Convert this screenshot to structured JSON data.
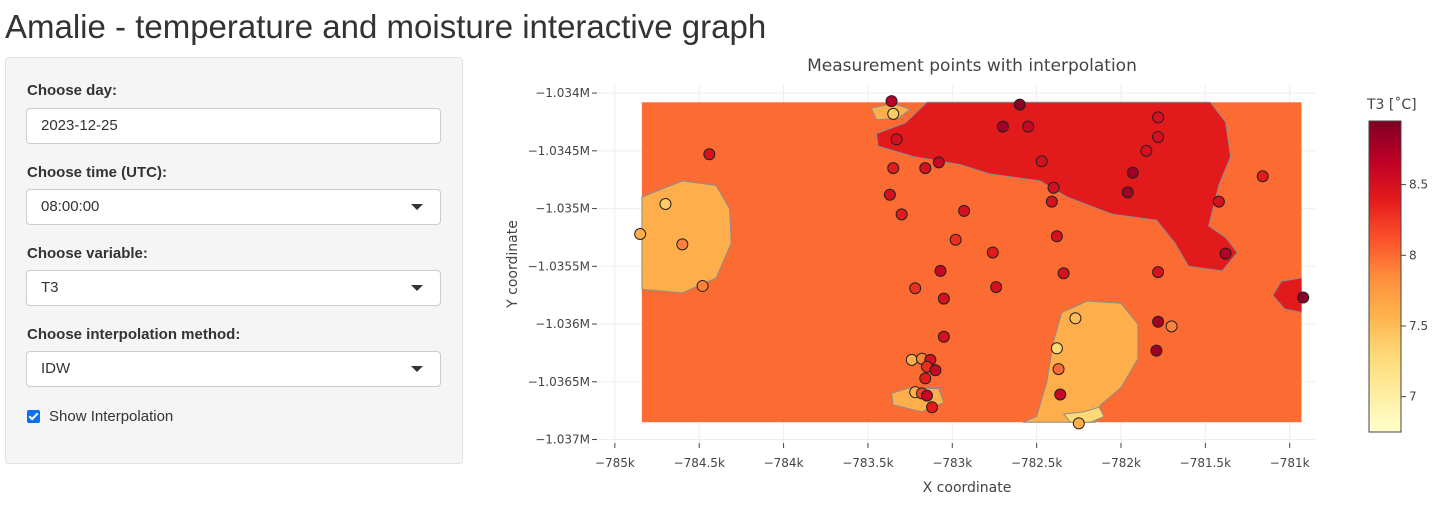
{
  "page": {
    "title": "Amalie - temperature and moisture interactive graph"
  },
  "controls": {
    "day": {
      "label": "Choose day:",
      "value": "2023-12-25"
    },
    "time": {
      "label": "Choose time (UTC):",
      "value": "08:00:00"
    },
    "variable": {
      "label": "Choose variable:",
      "value": "T3"
    },
    "method": {
      "label": "Choose interpolation method:",
      "value": "IDW"
    },
    "show_interp": {
      "label": "Show Interpolation",
      "checked": true
    }
  },
  "chart_data": {
    "type": "scatter",
    "title": "Measurement points with interpolation",
    "xlabel": "X coordinate",
    "ylabel": "Y coordinate",
    "xlim": [
      -785100,
      -780850
    ],
    "ylim": [
      -1037030,
      -1033930
    ],
    "x_ticks": [
      -785000,
      -784500,
      -784000,
      -783500,
      -783000,
      -782500,
      -782000,
      -781500,
      -781000
    ],
    "x_tick_labels": [
      "−785k",
      "−784.5k",
      "−784k",
      "−783.5k",
      "−783k",
      "−782.5k",
      "−782k",
      "−781.5k",
      "−781k"
    ],
    "y_ticks": [
      -1034000,
      -1034500,
      -1035000,
      -1035500,
      -1036000,
      -1036500,
      -1037000
    ],
    "y_tick_labels": [
      "−1.034M",
      "−1.0345M",
      "−1.035M",
      "−1.0355M",
      "−1.036M",
      "−1.0365M",
      "−1.037M"
    ],
    "grid": true,
    "colorbar": {
      "title": "T3  [˚C]",
      "min": 6.75,
      "max": 8.95,
      "ticks": [
        7,
        7.5,
        8,
        8.5
      ],
      "tick_labels": [
        "7",
        "7.5",
        "8",
        "8.5"
      ],
      "colorscale": [
        "#ffffcc",
        "#ffeda0",
        "#fed976",
        "#feb24c",
        "#fd8d3c",
        "#fc4e2a",
        "#e31a1c",
        "#bd0026",
        "#800026"
      ]
    },
    "interpolation_extent": {
      "x": [
        -784840,
        -780930
      ],
      "y": [
        -1034080,
        -1036850
      ]
    },
    "contour_levels": {
      "background": 8.0,
      "regions": [
        {
          "value": 7.6,
          "polygon": [
            [
              -784840,
              -1034900
            ],
            [
              -784600,
              -1034760
            ],
            [
              -784400,
              -1034800
            ],
            [
              -784320,
              -1035000
            ],
            [
              -784310,
              -1035300
            ],
            [
              -784400,
              -1035600
            ],
            [
              -784600,
              -1035730
            ],
            [
              -784840,
              -1035700
            ]
          ]
        },
        {
          "value": 7.6,
          "polygon": [
            [
              -782500,
              -1036800
            ],
            [
              -782440,
              -1036500
            ],
            [
              -782400,
              -1036150
            ],
            [
              -782350,
              -1035900
            ],
            [
              -782200,
              -1035800
            ],
            [
              -782000,
              -1035820
            ],
            [
              -781900,
              -1036000
            ],
            [
              -781900,
              -1036300
            ],
            [
              -782000,
              -1036550
            ],
            [
              -782120,
              -1036700
            ],
            [
              -782150,
              -1036850
            ],
            [
              -782580,
              -1036850
            ]
          ]
        },
        {
          "value": 7.3,
          "polygon": [
            [
              -782220,
              -1036760
            ],
            [
              -782130,
              -1036720
            ],
            [
              -782100,
              -1036800
            ],
            [
              -782180,
              -1036850
            ],
            [
              -782300,
              -1036850
            ],
            [
              -782340,
              -1036780
            ]
          ]
        },
        {
          "value": 7.6,
          "polygon": [
            [
              -783480,
              -1034130
            ],
            [
              -783350,
              -1034090
            ],
            [
              -783250,
              -1034140
            ],
            [
              -783320,
              -1034220
            ],
            [
              -783450,
              -1034230
            ]
          ]
        },
        {
          "value": 7.6,
          "polygon": [
            [
              -783250,
              -1036550
            ],
            [
              -783080,
              -1036560
            ],
            [
              -783050,
              -1036680
            ],
            [
              -783180,
              -1036760
            ],
            [
              -783350,
              -1036700
            ],
            [
              -783360,
              -1036600
            ]
          ]
        },
        {
          "value": 8.4,
          "polygon": [
            [
              -783150,
              -1034080
            ],
            [
              -781470,
              -1034080
            ],
            [
              -781380,
              -1034250
            ],
            [
              -781350,
              -1034550
            ],
            [
              -781420,
              -1034800
            ],
            [
              -781480,
              -1035150
            ],
            [
              -781380,
              -1035250
            ],
            [
              -781310,
              -1035380
            ],
            [
              -781400,
              -1035540
            ],
            [
              -781600,
              -1035500
            ],
            [
              -781680,
              -1035300
            ],
            [
              -781790,
              -1035100
            ],
            [
              -782050,
              -1035050
            ],
            [
              -782320,
              -1034900
            ],
            [
              -782480,
              -1034760
            ],
            [
              -782780,
              -1034700
            ],
            [
              -782950,
              -1034620
            ],
            [
              -783230,
              -1034550
            ],
            [
              -783440,
              -1034460
            ],
            [
              -783450,
              -1034350
            ],
            [
              -783280,
              -1034260
            ]
          ]
        },
        {
          "value": 8.4,
          "polygon": [
            [
              -780930,
              -1035600
            ],
            [
              -781050,
              -1035630
            ],
            [
              -781100,
              -1035750
            ],
            [
              -781030,
              -1035870
            ],
            [
              -780930,
              -1035900
            ]
          ]
        }
      ]
    },
    "points": [
      {
        "x": -783360,
        "y": -1034070,
        "v": 8.7
      },
      {
        "x": -783350,
        "y": -1034180,
        "v": 7.4
      },
      {
        "x": -783330,
        "y": -1034400,
        "v": 8.5
      },
      {
        "x": -783350,
        "y": -1034650,
        "v": 8.4
      },
      {
        "x": -783160,
        "y": -1034650,
        "v": 8.5
      },
      {
        "x": -783080,
        "y": -1034600,
        "v": 8.6
      },
      {
        "x": -783370,
        "y": -1034880,
        "v": 8.5
      },
      {
        "x": -783300,
        "y": -1035050,
        "v": 8.4
      },
      {
        "x": -782600,
        "y": -1034100,
        "v": 8.9
      },
      {
        "x": -782700,
        "y": -1034290,
        "v": 8.8
      },
      {
        "x": -782550,
        "y": -1034290,
        "v": 8.6
      },
      {
        "x": -782470,
        "y": -1034590,
        "v": 8.5
      },
      {
        "x": -782400,
        "y": -1034820,
        "v": 8.5
      },
      {
        "x": -782410,
        "y": -1034940,
        "v": 8.5
      },
      {
        "x": -781780,
        "y": -1034210,
        "v": 8.5
      },
      {
        "x": -781780,
        "y": -1034380,
        "v": 8.5
      },
      {
        "x": -781850,
        "y": -1034500,
        "v": 8.5
      },
      {
        "x": -781930,
        "y": -1034690,
        "v": 8.8
      },
      {
        "x": -781960,
        "y": -1034860,
        "v": 8.8
      },
      {
        "x": -781420,
        "y": -1034940,
        "v": 8.5
      },
      {
        "x": -781160,
        "y": -1034720,
        "v": 8.4
      },
      {
        "x": -781380,
        "y": -1035390,
        "v": 8.7
      },
      {
        "x": -780920,
        "y": -1035770,
        "v": 8.9
      },
      {
        "x": -784440,
        "y": -1034530,
        "v": 8.5
      },
      {
        "x": -784700,
        "y": -1034960,
        "v": 7.4
      },
      {
        "x": -784850,
        "y": -1035220,
        "v": 7.6
      },
      {
        "x": -784600,
        "y": -1035310,
        "v": 7.9
      },
      {
        "x": -784480,
        "y": -1035670,
        "v": 7.9
      },
      {
        "x": -782930,
        "y": -1035020,
        "v": 8.5
      },
      {
        "x": -782980,
        "y": -1035270,
        "v": 8.3
      },
      {
        "x": -782380,
        "y": -1035240,
        "v": 8.5
      },
      {
        "x": -782760,
        "y": -1035380,
        "v": 8.4
      },
      {
        "x": -783070,
        "y": -1035540,
        "v": 8.6
      },
      {
        "x": -783220,
        "y": -1035690,
        "v": 8.3
      },
      {
        "x": -782740,
        "y": -1035680,
        "v": 8.5
      },
      {
        "x": -782340,
        "y": -1035560,
        "v": 8.5
      },
      {
        "x": -781780,
        "y": -1035550,
        "v": 8.5
      },
      {
        "x": -783050,
        "y": -1035780,
        "v": 8.5
      },
      {
        "x": -783050,
        "y": -1036110,
        "v": 8.5
      },
      {
        "x": -782270,
        "y": -1035950,
        "v": 7.5
      },
      {
        "x": -781780,
        "y": -1035980,
        "v": 8.8
      },
      {
        "x": -781700,
        "y": -1036020,
        "v": 7.9
      },
      {
        "x": -782380,
        "y": -1036210,
        "v": 7.3
      },
      {
        "x": -781790,
        "y": -1036230,
        "v": 8.8
      },
      {
        "x": -782370,
        "y": -1036390,
        "v": 8.0
      },
      {
        "x": -783240,
        "y": -1036310,
        "v": 7.6
      },
      {
        "x": -783180,
        "y": -1036300,
        "v": 7.9
      },
      {
        "x": -783130,
        "y": -1036310,
        "v": 8.5
      },
      {
        "x": -783150,
        "y": -1036370,
        "v": 8.3
      },
      {
        "x": -783100,
        "y": -1036400,
        "v": 8.6
      },
      {
        "x": -783160,
        "y": -1036470,
        "v": 8.4
      },
      {
        "x": -783220,
        "y": -1036590,
        "v": 7.6
      },
      {
        "x": -783180,
        "y": -1036600,
        "v": 8.2
      },
      {
        "x": -783150,
        "y": -1036620,
        "v": 8.6
      },
      {
        "x": -783120,
        "y": -1036720,
        "v": 8.4
      },
      {
        "x": -782360,
        "y": -1036610,
        "v": 8.6
      },
      {
        "x": -782250,
        "y": -1036860,
        "v": 7.6
      }
    ]
  }
}
